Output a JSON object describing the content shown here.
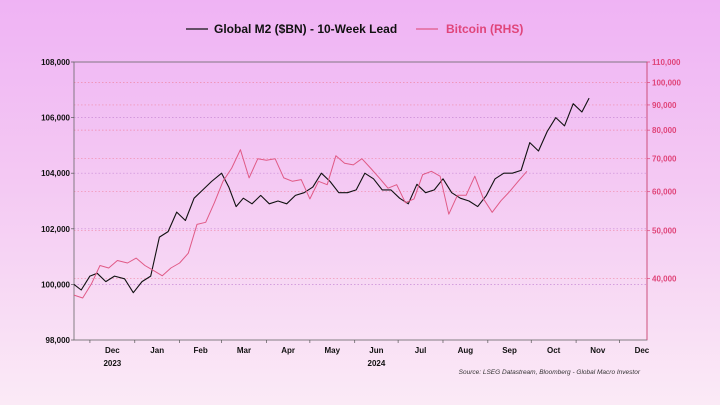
{
  "chart_data": {
    "type": "line",
    "title": "",
    "source": "Source: LSEG Datastream, Bloomberg - Global Macro Investor",
    "x_months": [
      "Dec",
      "Jan",
      "Feb",
      "Mar",
      "Apr",
      "May",
      "Jun",
      "Jul",
      "Aug",
      "Sep",
      "Oct",
      "Nov",
      "Dec"
    ],
    "x_years": [
      "2023",
      "2024"
    ],
    "xlim": [
      "2023-11-20",
      "2024-12-20"
    ],
    "y_left": {
      "ticks": [
        "98,000",
        "100,000",
        "102,000",
        "104,000",
        "106,000",
        "108,000"
      ],
      "lim": [
        98000,
        108000
      ]
    },
    "y_right": {
      "scale": "log",
      "ticks": [
        "40,000",
        "50,000",
        "60,000",
        "70,000",
        "80,000",
        "90,000",
        "100,000",
        "110,000"
      ],
      "lim": [
        30000,
        110000
      ]
    },
    "grid": true,
    "legend": {
      "position": "top",
      "entries": [
        "Global M2 ($BN) - 10-Week Lead",
        "Bitcoin (RHS)"
      ]
    },
    "colors": {
      "m2": "#111111",
      "btc": "#e05a86",
      "grid_left": "#c98bd6",
      "grid_right": "#f08aa8",
      "right_axis": "#e0457a"
    },
    "series": [
      {
        "name": "Global M2 ($BN) - 10-Week Lead",
        "axis": "left",
        "x": [
          "2023-11-20",
          "2023-11-25",
          "2023-12-01",
          "2023-12-06",
          "2023-12-12",
          "2023-12-18",
          "2023-12-25",
          "2023-12-31",
          "2024-01-06",
          "2024-01-12",
          "2024-01-18",
          "2024-01-24",
          "2024-01-30",
          "2024-02-05",
          "2024-02-11",
          "2024-02-17",
          "2024-02-23",
          "2024-03-01",
          "2024-03-06",
          "2024-03-11",
          "2024-03-16",
          "2024-03-22",
          "2024-03-28",
          "2024-04-03",
          "2024-04-09",
          "2024-04-15",
          "2024-04-21",
          "2024-04-27",
          "2024-05-03",
          "2024-05-09",
          "2024-05-15",
          "2024-05-21",
          "2024-05-27",
          "2024-06-02",
          "2024-06-08",
          "2024-06-14",
          "2024-06-20",
          "2024-06-26",
          "2024-07-02",
          "2024-07-08",
          "2024-07-14",
          "2024-07-20",
          "2024-07-26",
          "2024-08-01",
          "2024-08-07",
          "2024-08-13",
          "2024-08-19",
          "2024-08-25",
          "2024-08-31",
          "2024-09-06",
          "2024-09-12",
          "2024-09-18",
          "2024-09-24",
          "2024-09-30",
          "2024-10-06",
          "2024-10-12",
          "2024-10-18",
          "2024-10-24",
          "2024-10-30",
          "2024-11-05",
          "2024-11-10"
        ],
        "values": [
          100000,
          99800,
          100300,
          100400,
          100100,
          100300,
          100200,
          99700,
          100100,
          100300,
          101700,
          101900,
          102600,
          102300,
          103100,
          103400,
          103700,
          104000,
          103500,
          102800,
          103100,
          102900,
          103200,
          102900,
          103000,
          102900,
          103200,
          103300,
          103500,
          104000,
          103700,
          103300,
          103300,
          103400,
          104000,
          103800,
          103400,
          103400,
          103100,
          102900,
          103600,
          103300,
          103400,
          103800,
          103300,
          103100,
          103000,
          102800,
          103200,
          103800,
          104000,
          104000,
          104100,
          105100,
          104800,
          105500,
          106000,
          105700,
          106500,
          106200,
          106700
        ]
      },
      {
        "name": "Bitcoin (RHS)",
        "axis": "right",
        "x": [
          "2023-11-20",
          "2023-11-26",
          "2023-12-02",
          "2023-12-08",
          "2023-12-14",
          "2023-12-20",
          "2023-12-27",
          "2024-01-02",
          "2024-01-08",
          "2024-01-14",
          "2024-01-20",
          "2024-01-26",
          "2024-02-01",
          "2024-02-07",
          "2024-02-13",
          "2024-02-19",
          "2024-02-25",
          "2024-03-02",
          "2024-03-08",
          "2024-03-14",
          "2024-03-20",
          "2024-03-26",
          "2024-04-01",
          "2024-04-07",
          "2024-04-13",
          "2024-04-19",
          "2024-04-25",
          "2024-05-01",
          "2024-05-07",
          "2024-05-13",
          "2024-05-19",
          "2024-05-25",
          "2024-05-31",
          "2024-06-06",
          "2024-06-12",
          "2024-06-18",
          "2024-06-24",
          "2024-06-30",
          "2024-07-06",
          "2024-07-12",
          "2024-07-18",
          "2024-07-24",
          "2024-07-30",
          "2024-08-05",
          "2024-08-11",
          "2024-08-17",
          "2024-08-23",
          "2024-08-29",
          "2024-09-04",
          "2024-09-10",
          "2024-09-16",
          "2024-09-22",
          "2024-09-28"
        ],
        "values": [
          37000,
          36500,
          39000,
          42500,
          42000,
          43500,
          43000,
          44000,
          42500,
          41500,
          40500,
          42000,
          43000,
          45000,
          51500,
          52000,
          57000,
          63000,
          67000,
          73000,
          64000,
          70000,
          69500,
          70000,
          64000,
          63000,
          63500,
          58000,
          63000,
          62000,
          71000,
          68500,
          68000,
          70000,
          67000,
          64000,
          61000,
          62000,
          57000,
          58000,
          65000,
          66000,
          64500,
          54000,
          59000,
          59000,
          64500,
          58000,
          54500,
          57500,
          60000,
          63000,
          66000
        ]
      }
    ]
  }
}
